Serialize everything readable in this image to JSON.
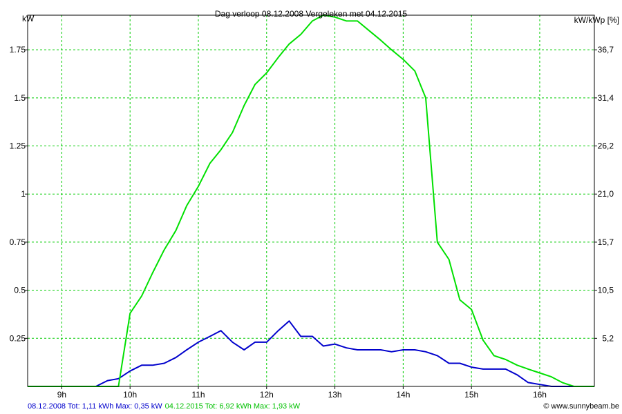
{
  "chart_data": {
    "type": "line",
    "title": "Dag  verloop 08.12.2008   Vergeleken met 04.12.2015",
    "ylabel_left": "kW",
    "ylabel_right": "kW/kWp [%]",
    "xlim": [
      8.5,
      16.8
    ],
    "ylim": [
      0,
      1.93
    ],
    "x_ticks": [
      9,
      10,
      11,
      12,
      13,
      14,
      15,
      16
    ],
    "x_tick_labels": [
      "9h",
      "10h",
      "11h",
      "12h",
      "13h",
      "14h",
      "15h",
      "16h"
    ],
    "y_ticks": [
      0.25,
      0.5,
      0.75,
      1,
      1.25,
      1.5,
      1.75
    ],
    "y_tick_labels": [
      "0.25",
      "0.5",
      "0.75",
      "1",
      "1.25",
      "1.5",
      "1.75"
    ],
    "y2_tick_labels": [
      "5,2",
      "10,5",
      "15,7",
      "21,0",
      "26,2",
      "31,4",
      "36,7"
    ],
    "grid": true,
    "series": [
      {
        "name": "08.12.2008",
        "color": "#0000cc",
        "x": [
          8.5,
          9.5,
          9.67,
          9.83,
          10.0,
          10.17,
          10.33,
          10.5,
          10.67,
          10.83,
          11.0,
          11.17,
          11.33,
          11.5,
          11.67,
          11.83,
          12.0,
          12.17,
          12.33,
          12.5,
          12.67,
          12.83,
          13.0,
          13.17,
          13.33,
          13.5,
          13.67,
          13.83,
          14.0,
          14.17,
          14.33,
          14.5,
          14.67,
          14.83,
          15.0,
          15.17,
          15.33,
          15.5,
          15.67,
          15.83,
          16.0,
          16.17,
          16.33,
          16.5,
          16.8
        ],
        "y": [
          0,
          0,
          0.03,
          0.04,
          0.08,
          0.11,
          0.11,
          0.12,
          0.15,
          0.19,
          0.23,
          0.26,
          0.29,
          0.23,
          0.19,
          0.23,
          0.23,
          0.29,
          0.34,
          0.26,
          0.26,
          0.21,
          0.22,
          0.2,
          0.19,
          0.19,
          0.19,
          0.18,
          0.19,
          0.19,
          0.18,
          0.16,
          0.12,
          0.12,
          0.1,
          0.09,
          0.09,
          0.09,
          0.06,
          0.02,
          0.01,
          0,
          0,
          0,
          0
        ]
      },
      {
        "name": "04.12.2015",
        "color": "#00e000",
        "x": [
          8.5,
          9.83,
          10.0,
          10.17,
          10.33,
          10.5,
          10.67,
          10.83,
          11.0,
          11.17,
          11.33,
          11.5,
          11.67,
          11.83,
          12.0,
          12.17,
          12.33,
          12.5,
          12.67,
          12.83,
          13.0,
          13.17,
          13.33,
          13.5,
          13.67,
          13.83,
          14.0,
          14.17,
          14.33,
          14.5,
          14.67,
          14.83,
          15.0,
          15.17,
          15.33,
          15.5,
          15.67,
          15.83,
          16.0,
          16.17,
          16.33,
          16.5,
          16.8
        ],
        "y": [
          0,
          0,
          0.38,
          0.47,
          0.59,
          0.71,
          0.81,
          0.94,
          1.04,
          1.16,
          1.23,
          1.32,
          1.46,
          1.57,
          1.63,
          1.71,
          1.78,
          1.83,
          1.9,
          1.93,
          1.92,
          1.9,
          1.9,
          1.85,
          1.8,
          1.75,
          1.7,
          1.64,
          1.5,
          0.75,
          0.66,
          0.45,
          0.4,
          0.24,
          0.16,
          0.14,
          0.11,
          0.09,
          0.07,
          0.05,
          0.02,
          0,
          0
        ]
      }
    ]
  },
  "legend": {
    "series1_text": "08.12.2008 Tot: 1,11 kWh Max: 0,35 kW",
    "series2_text": "04.12.2015 Tot: 6,92 kWh Max: 1,93 kW"
  },
  "copyright": "© www.sunnybeam.be"
}
